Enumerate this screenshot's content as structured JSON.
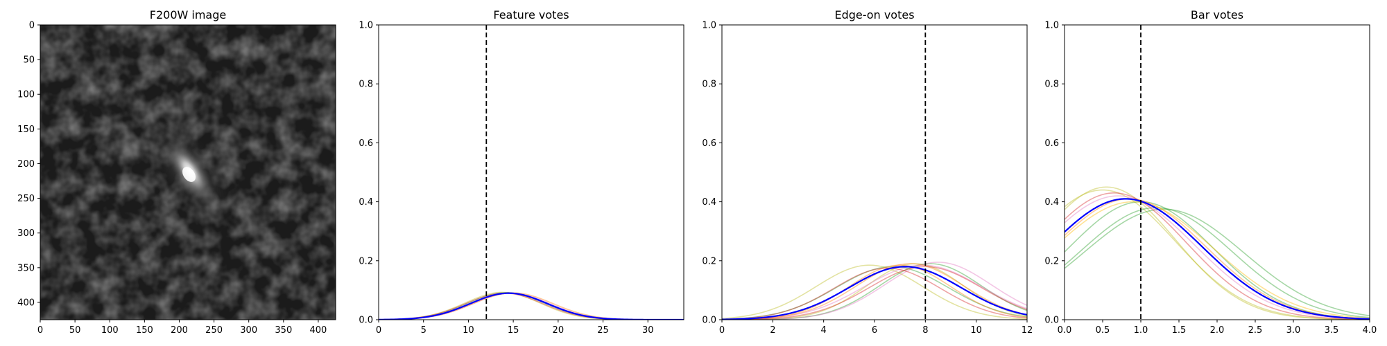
{
  "chart_data": [
    {
      "type": "image",
      "title": "F200W image",
      "xlim": [
        0,
        425
      ],
      "ylim": [
        425,
        0
      ],
      "xticks": [
        "0",
        "50",
        "100",
        "150",
        "200",
        "250",
        "300",
        "350",
        "400"
      ],
      "yticks": [
        "0",
        "50",
        "100",
        "150",
        "200",
        "250",
        "300",
        "350",
        "400"
      ],
      "colormap": "gray",
      "source_center": [
        215,
        210
      ]
    },
    {
      "type": "line",
      "title": "Feature votes",
      "xlim": [
        0,
        34
      ],
      "ylim": [
        0,
        1
      ],
      "xticks": [
        "0",
        "5",
        "10",
        "15",
        "20",
        "25",
        "30"
      ],
      "yticks": [
        "0.0",
        "0.2",
        "0.4",
        "0.6",
        "0.8",
        "1.0"
      ],
      "vline": 12,
      "mean_curve": {
        "color": "#0000ff",
        "mu": 14.5,
        "sigma": 4.3,
        "amp": 0.09
      },
      "sample_curves": [
        {
          "color": "#2ca02c",
          "mu": 14.2,
          "sigma": 4.3,
          "amp": 0.092
        },
        {
          "color": "#e377c2",
          "mu": 14.8,
          "sigma": 4.3,
          "amp": 0.09
        },
        {
          "color": "#ff7f0e",
          "mu": 15.0,
          "sigma": 4.4,
          "amp": 0.091
        },
        {
          "color": "#bcbd22",
          "mu": 13.8,
          "sigma": 4.2,
          "amp": 0.093
        },
        {
          "color": "#d62728",
          "mu": 14.0,
          "sigma": 4.3,
          "amp": 0.09
        }
      ]
    },
    {
      "type": "line",
      "title": "Edge-on votes",
      "xlim": [
        0,
        12
      ],
      "ylim": [
        0,
        1
      ],
      "xticks": [
        "0",
        "2",
        "4",
        "6",
        "8",
        "10",
        "12"
      ],
      "yticks": [
        "0.0",
        "0.2",
        "0.4",
        "0.6",
        "0.8",
        "1.0"
      ],
      "vline": 8,
      "mean_curve": {
        "color": "#0000ff",
        "mu": 7.2,
        "sigma": 2.2,
        "amp": 0.18
      },
      "sample_curves": [
        {
          "color": "#bcbd22",
          "mu": 5.8,
          "sigma": 2.1,
          "amp": 0.185
        },
        {
          "color": "#bcbd22",
          "mu": 7.6,
          "sigma": 1.9,
          "amp": 0.19
        },
        {
          "color": "#2ca02c",
          "mu": 6.7,
          "sigma": 2.2,
          "amp": 0.18
        },
        {
          "color": "#2ca02c",
          "mu": 8.2,
          "sigma": 2.0,
          "amp": 0.19
        },
        {
          "color": "#e377c2",
          "mu": 8.5,
          "sigma": 2.1,
          "amp": 0.195
        },
        {
          "color": "#e377c2",
          "mu": 7.9,
          "sigma": 2.3,
          "amp": 0.185
        },
        {
          "color": "#ff7f0e",
          "mu": 7.4,
          "sigma": 2.1,
          "amp": 0.19
        },
        {
          "color": "#ff7f0e",
          "mu": 7.0,
          "sigma": 2.0,
          "amp": 0.185
        },
        {
          "color": "#d62728",
          "mu": 8.0,
          "sigma": 2.2,
          "amp": 0.18
        },
        {
          "color": "#d62728",
          "mu": 6.5,
          "sigma": 2.1,
          "amp": 0.175
        }
      ]
    },
    {
      "type": "line",
      "title": "Bar votes",
      "xlim": [
        0,
        4
      ],
      "ylim": [
        0,
        1
      ],
      "xticks": [
        "0.0",
        "0.5",
        "1.0",
        "1.5",
        "2.0",
        "2.5",
        "3.0",
        "3.5",
        "4.0"
      ],
      "yticks": [
        "0.0",
        "0.2",
        "0.4",
        "0.6",
        "0.8",
        "1.0"
      ],
      "vline": 1.0,
      "mean_curve": {
        "color": "#0000ff",
        "mu": 0.8,
        "sigma": 1.0,
        "amp": 0.41
      },
      "sample_curves": [
        {
          "color": "#bcbd22",
          "mu": 0.55,
          "sigma": 0.9,
          "amp": 0.45
        },
        {
          "color": "#bcbd22",
          "mu": 0.5,
          "sigma": 0.95,
          "amp": 0.44
        },
        {
          "color": "#2ca02c",
          "mu": 1.2,
          "sigma": 1.0,
          "amp": 0.38
        },
        {
          "color": "#2ca02c",
          "mu": 1.0,
          "sigma": 0.95,
          "amp": 0.4
        },
        {
          "color": "#2ca02c",
          "mu": 1.3,
          "sigma": 1.05,
          "amp": 0.375
        },
        {
          "color": "#e377c2",
          "mu": 0.7,
          "sigma": 1.0,
          "amp": 0.42
        },
        {
          "color": "#d62728",
          "mu": 0.65,
          "sigma": 0.95,
          "amp": 0.43
        },
        {
          "color": "#ff7f0e",
          "mu": 0.85,
          "sigma": 1.0,
          "amp": 0.41
        },
        {
          "color": "#ffbb00",
          "mu": 0.9,
          "sigma": 1.05,
          "amp": 0.4
        }
      ]
    }
  ]
}
